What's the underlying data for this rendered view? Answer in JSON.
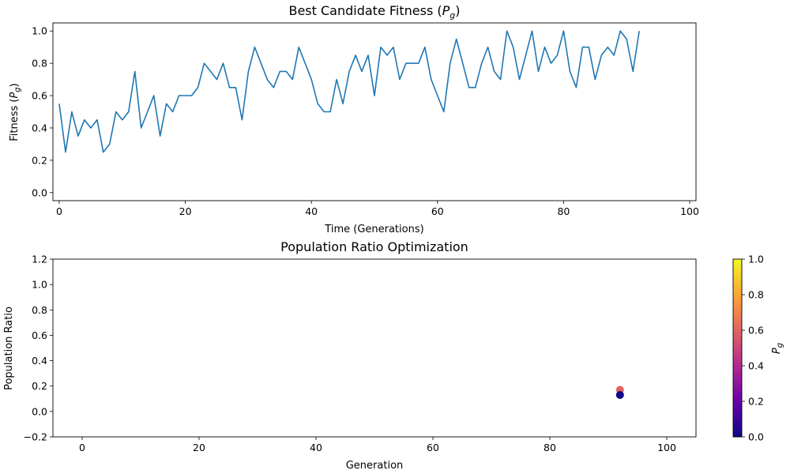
{
  "chart_data": [
    {
      "type": "line",
      "title": "Best Candidate Fitness (",
      "title_var": "P",
      "title_var_sub": "g",
      "title_end": ")",
      "xlabel": "Time (Generations)",
      "ylabel": "Fitness (",
      "ylabel_var": "P",
      "ylabel_var_sub": "g",
      "ylabel_end": ")",
      "xlim": [
        -1,
        101
      ],
      "ylim": [
        -0.05,
        1.05
      ],
      "xticks": [
        0,
        20,
        40,
        60,
        80,
        100
      ],
      "yticks": [
        0.0,
        0.2,
        0.4,
        0.6,
        0.8,
        1.0
      ],
      "xtick_labels": [
        "0",
        "20",
        "40",
        "60",
        "80",
        "100"
      ],
      "ytick_labels": [
        "0.0",
        "0.2",
        "0.4",
        "0.6",
        "0.8",
        "1.0"
      ],
      "line_color": "#1f77b4",
      "series": [
        {
          "x": [
            0,
            1,
            2,
            3,
            4,
            5,
            6,
            7,
            8,
            9,
            10,
            11,
            12,
            13,
            14,
            15,
            16,
            17,
            18,
            19,
            20,
            21,
            22,
            23,
            24,
            25,
            26,
            27,
            28,
            29,
            30,
            31,
            32,
            33,
            34,
            35,
            36,
            37,
            38,
            39,
            40,
            41,
            42,
            43,
            44,
            45,
            46,
            47,
            48,
            49,
            50,
            51,
            52,
            53,
            54,
            55,
            56,
            57,
            58,
            59,
            60,
            61,
            62,
            63,
            64,
            65,
            66,
            67,
            68,
            69,
            70,
            71,
            72,
            73,
            74,
            75,
            76,
            77,
            78,
            79,
            80,
            81,
            82,
            83,
            84,
            85,
            86,
            87,
            88,
            89,
            90,
            91,
            92
          ],
          "values": [
            0.55,
            0.25,
            0.5,
            0.35,
            0.45,
            0.4,
            0.45,
            0.25,
            0.3,
            0.5,
            0.45,
            0.5,
            0.75,
            0.4,
            0.5,
            0.6,
            0.35,
            0.55,
            0.5,
            0.6,
            0.6,
            0.6,
            0.65,
            0.8,
            0.75,
            0.7,
            0.8,
            0.65,
            0.65,
            0.45,
            0.75,
            0.9,
            0.8,
            0.7,
            0.65,
            0.75,
            0.75,
            0.7,
            0.9,
            0.8,
            0.7,
            0.55,
            0.5,
            0.5,
            0.7,
            0.55,
            0.75,
            0.85,
            0.75,
            0.85,
            0.6,
            0.9,
            0.85,
            0.9,
            0.7,
            0.8,
            0.8,
            0.8,
            0.9,
            0.7,
            0.6,
            0.5,
            0.8,
            0.95,
            0.8,
            0.65,
            0.65,
            0.8,
            0.9,
            0.75,
            0.7,
            1.0,
            0.9,
            0.7,
            0.85,
            1.0,
            0.75,
            0.9,
            0.8,
            0.85,
            1.0,
            0.75,
            0.65,
            0.9,
            0.9,
            0.7,
            0.85,
            0.9,
            0.85,
            1.0,
            0.95,
            0.75,
            1.0
          ]
        }
      ]
    },
    {
      "type": "scatter",
      "title": "Population Ratio Optimization",
      "xlabel": "Generation",
      "ylabel": "Population Ratio",
      "xlim": [
        -5,
        105
      ],
      "ylim": [
        -0.2,
        1.2
      ],
      "xticks": [
        0,
        20,
        40,
        60,
        80,
        100
      ],
      "yticks": [
        -0.2,
        0.0,
        0.2,
        0.4,
        0.6,
        0.8,
        1.0,
        1.2
      ],
      "xtick_labels": [
        "0",
        "20",
        "40",
        "60",
        "80",
        "100"
      ],
      "ytick_labels": [
        "−0.2",
        "0.0",
        "0.2",
        "0.4",
        "0.6",
        "0.8",
        "1.0",
        "1.2"
      ],
      "points": [
        {
          "x": 92,
          "y": 0.17,
          "c": 0.6
        },
        {
          "x": 92,
          "y": 0.13,
          "c": 0.0
        }
      ],
      "colorbar": {
        "label_var": "P",
        "label_var_sub": "g",
        "range": [
          0.0,
          1.0
        ],
        "ticks": [
          0.0,
          0.2,
          0.4,
          0.6,
          0.8,
          1.0
        ],
        "tick_labels": [
          "0.0",
          "0.2",
          "0.4",
          "0.6",
          "0.8",
          "1.0"
        ],
        "colormap": "plasma",
        "stops": [
          "#0d0887",
          "#6a00a8",
          "#b12a90",
          "#e16462",
          "#fca636",
          "#f0f921"
        ]
      }
    }
  ]
}
